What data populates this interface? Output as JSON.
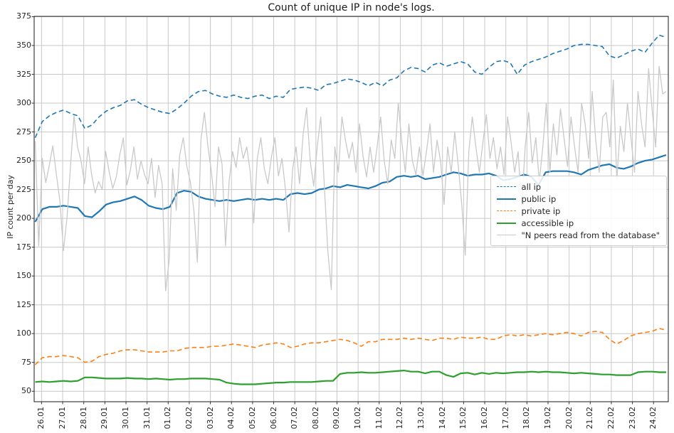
{
  "chart_data": {
    "type": "line",
    "title": "Count of unique IP in node's logs.",
    "xlabel": "",
    "ylabel": "IP count per day",
    "grid": true,
    "legend_position": "center right",
    "xlim": [
      -0.35,
      29.7
    ],
    "ylim": [
      40.9,
      375.3
    ],
    "y_ticks": [
      50,
      75,
      100,
      125,
      150,
      175,
      200,
      225,
      250,
      275,
      300,
      325,
      350,
      375
    ],
    "x_ticklabels": [
      "26.01",
      "27.01",
      "28.01",
      "29.01",
      "30.01",
      "31.01",
      "01.02",
      "02.02",
      "03.02",
      "04.02",
      "05.02",
      "06.02",
      "07.02",
      "08.02",
      "09.02",
      "10.02",
      "11.02",
      "12.02",
      "13.02",
      "14.02",
      "15.02",
      "16.02",
      "17.02",
      "18.02",
      "19.02",
      "20.02",
      "21.02",
      "22.02",
      "23.02",
      "24.02"
    ],
    "series": [
      {
        "name": "all ip",
        "color": "#1f77b4",
        "style": "dashed",
        "width": 1.6,
        "x_start": -0.3,
        "x_end": 29.6,
        "values": [
          270,
          284,
          289,
          292,
          294,
          291,
          289,
          278,
          281,
          288,
          293,
          296,
          298,
          302,
          303,
          299,
          296,
          294,
          292,
          291,
          295,
          300,
          306,
          310,
          311,
          308,
          306,
          305,
          307,
          305,
          304,
          306,
          307,
          304,
          306,
          305,
          312,
          313,
          314,
          313,
          311,
          316,
          317,
          319,
          321,
          320,
          318,
          315,
          318,
          315,
          320,
          322,
          328,
          331,
          330,
          327,
          333,
          335,
          332,
          334,
          336,
          334,
          327,
          325,
          331,
          336,
          337,
          335,
          325,
          333,
          336,
          338,
          340,
          343,
          345,
          347,
          350,
          351,
          351,
          350,
          349,
          341,
          339,
          342,
          345,
          347,
          344,
          352,
          359,
          357
        ]
      },
      {
        "name": "public ip",
        "color": "#1f77b4",
        "style": "solid",
        "width": 2.2,
        "x_start": -0.3,
        "x_end": 29.6,
        "values": [
          197,
          208,
          210,
          210,
          211,
          210,
          209,
          202,
          201,
          206,
          212,
          214,
          215,
          217,
          219,
          216,
          211,
          209,
          208,
          210,
          222,
          224,
          223,
          219,
          217,
          216,
          215,
          216,
          215,
          216,
          217,
          216,
          217,
          216,
          217,
          216,
          221,
          222,
          221,
          222,
          225,
          226,
          228,
          227,
          229,
          228,
          227,
          226,
          228,
          231,
          232,
          236,
          237,
          236,
          237,
          234,
          235,
          236,
          238,
          240,
          239,
          237,
          238,
          238,
          239,
          237,
          233,
          234,
          236,
          238,
          236,
          229,
          240,
          241,
          241,
          241,
          240,
          238,
          242,
          244,
          246,
          247,
          244,
          243,
          245,
          248,
          250,
          251,
          253,
          255
        ]
      },
      {
        "name": "private ip",
        "color": "#ff7f0e",
        "style": "dashed",
        "width": 1.6,
        "x_start": -0.3,
        "x_end": 29.6,
        "values": [
          73,
          79,
          80,
          80,
          81,
          80,
          79,
          75,
          76,
          80,
          82,
          83,
          85,
          86,
          86,
          85,
          84,
          84,
          84,
          85,
          85,
          87,
          88,
          88,
          88,
          89,
          89,
          90,
          91,
          90,
          89,
          88,
          90,
          91,
          92,
          91,
          88,
          89,
          91,
          92,
          92,
          93,
          94,
          95,
          94,
          92,
          89,
          93,
          93,
          95,
          95,
          95,
          96,
          95,
          96,
          95,
          94,
          96,
          96,
          95,
          97,
          96,
          96,
          97,
          95,
          95,
          98,
          99,
          98,
          99,
          98,
          99,
          100,
          99,
          100,
          101,
          100,
          98,
          101,
          102,
          101,
          95,
          91,
          94,
          98,
          100,
          101,
          102,
          104.5,
          103
        ]
      },
      {
        "name": "accessible ip",
        "color": "#2ca02c",
        "style": "solid",
        "width": 2.2,
        "x_start": -0.3,
        "x_end": 29.6,
        "values": [
          58,
          58.5,
          58,
          58.5,
          59,
          58.5,
          59,
          62,
          62,
          61.5,
          61,
          61,
          61,
          61.5,
          61,
          61,
          60.5,
          61,
          60.5,
          60,
          60.5,
          60.5,
          61,
          61,
          61,
          60.5,
          60,
          57.5,
          56.5,
          56,
          56,
          56,
          56.5,
          57,
          57.5,
          57.5,
          58,
          58,
          58,
          58,
          58.5,
          59,
          59,
          65,
          66,
          66,
          66.5,
          66,
          66,
          66.5,
          67,
          67.5,
          68,
          67,
          67,
          65.5,
          67,
          67,
          64,
          62.5,
          65.5,
          66,
          64.5,
          66,
          65,
          66,
          65.5,
          66,
          66.5,
          66.5,
          67,
          66.5,
          67,
          66.5,
          66.5,
          66,
          65.5,
          66,
          65.5,
          65,
          64.5,
          64.5,
          64,
          64,
          64,
          66.5,
          67,
          67,
          66.5,
          66.5
        ]
      },
      {
        "name": "\"N peers read from the database\"",
        "color": "#c9c9c9",
        "style": "solid",
        "width": 1.3,
        "x_start": -0.3,
        "x_end": 29.6,
        "values": [
          267,
          176,
          252,
          231,
          246,
          263,
          238,
          215,
          172,
          200,
          245,
          289,
          262,
          250,
          230,
          262,
          238,
          222,
          232,
          225,
          258,
          240,
          226,
          236,
          255,
          270,
          229,
          242,
          262,
          234,
          250,
          238,
          230,
          252,
          218,
          246,
          230,
          137,
          164,
          243,
          207,
          255,
          270,
          245,
          232,
          207,
          162,
          268,
          292,
          262,
          240,
          210,
          262,
          247,
          176,
          232,
          258,
          244,
          270,
          252,
          262,
          240,
          196,
          252,
          270,
          243,
          230,
          253,
          270,
          237,
          252,
          225,
          188,
          242,
          262,
          230,
          273,
          296,
          250,
          228,
          262,
          288,
          229,
          172,
          138,
          262,
          240,
          288,
          268,
          252,
          266,
          240,
          282,
          254,
          236,
          262,
          240,
          262,
          288,
          250,
          230,
          268,
          252,
          300,
          266,
          240,
          282,
          250,
          238,
          262,
          237,
          258,
          282,
          240,
          268,
          249,
          212,
          262,
          240,
          275,
          246,
          212,
          168,
          258,
          288,
          262,
          240,
          266,
          290,
          252,
          270,
          243,
          262,
          238,
          288,
          266,
          240,
          258,
          210,
          262,
          292,
          248,
          270,
          232,
          262,
          300,
          240,
          282,
          255,
          295,
          270,
          245,
          288,
          262,
          240,
          300,
          282,
          252,
          310,
          268,
          240,
          288,
          292,
          262,
          320,
          233,
          280,
          258,
          300,
          270,
          240,
          310,
          282,
          262,
          330,
          295,
          262,
          332,
          308,
          310
        ]
      }
    ],
    "colors": {
      "grid": "#c8c8c8",
      "spine": "#1a1a1a",
      "tick": "#333333",
      "legend_border": "#cccccc"
    }
  }
}
